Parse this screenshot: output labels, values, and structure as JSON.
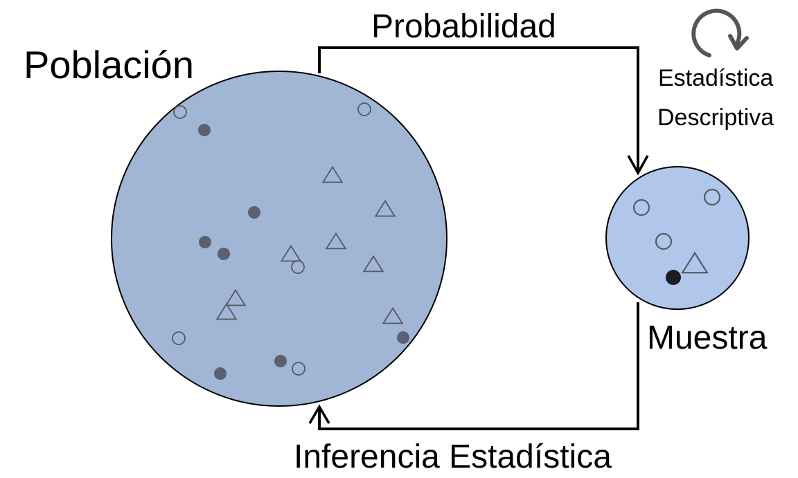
{
  "labels": {
    "population": "Población",
    "sample": "Muestra",
    "probability": "Probabilidad",
    "inference": "Inferencia Estadística",
    "descriptive_line1": "Estadística",
    "descriptive_line2": "Descriptiva"
  },
  "colors": {
    "population_fill": "#a1b5d5",
    "sample_fill": "#b0c6ea",
    "outline": "#000000",
    "marker_stroke": "#555a66",
    "marker_fill": "#5b6170",
    "sample_dot_fill": "#1b1d22",
    "cycle_arrow": "#555555"
  },
  "population_items": [
    {
      "kind": "circle-open"
    },
    {
      "kind": "dot"
    },
    {
      "kind": "circle-open"
    },
    {
      "kind": "triangle"
    },
    {
      "kind": "triangle"
    },
    {
      "kind": "dot"
    },
    {
      "kind": "dot"
    },
    {
      "kind": "dot"
    },
    {
      "kind": "triangle"
    },
    {
      "kind": "triangle"
    },
    {
      "kind": "circle-open"
    },
    {
      "kind": "triangle"
    },
    {
      "kind": "triangle"
    },
    {
      "kind": "triangle"
    },
    {
      "kind": "triangle"
    },
    {
      "kind": "circle-open"
    },
    {
      "kind": "dot"
    },
    {
      "kind": "dot"
    },
    {
      "kind": "circle-open"
    },
    {
      "kind": "dot"
    }
  ],
  "sample_items": [
    {
      "kind": "circle-open"
    },
    {
      "kind": "circle-open"
    },
    {
      "kind": "circle-open"
    },
    {
      "kind": "triangle"
    },
    {
      "kind": "dot"
    }
  ]
}
